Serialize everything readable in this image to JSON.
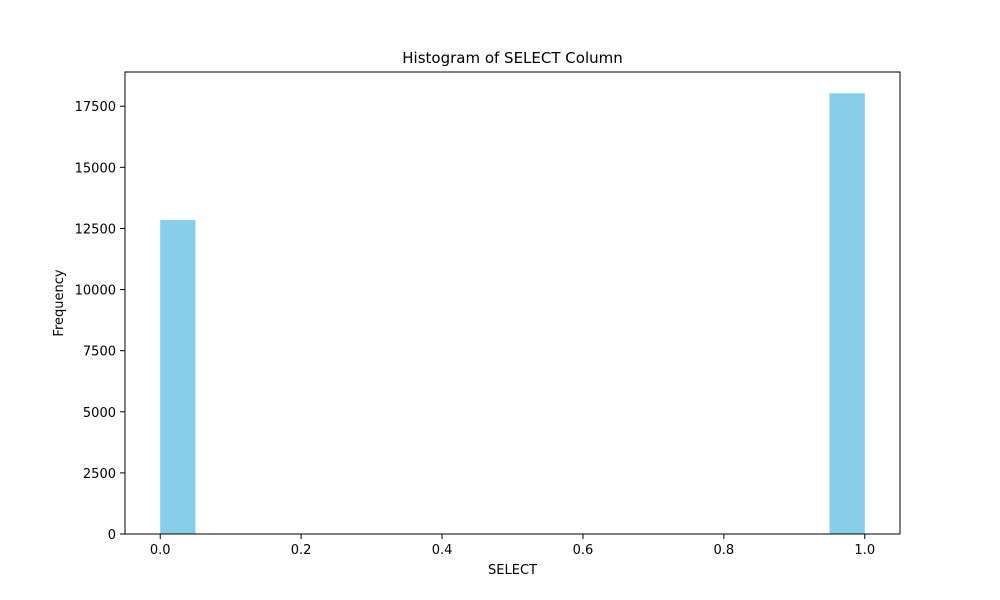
{
  "chart_data": {
    "type": "bar",
    "title": "Histogram of SELECT Column",
    "xlabel": "SELECT",
    "ylabel": "Frequency",
    "xlim": [
      -0.05,
      1.05
    ],
    "ylim": [
      0,
      18900
    ],
    "x_ticks": [
      "0.0",
      "0.2",
      "0.4",
      "0.6",
      "0.8",
      "1.0"
    ],
    "y_ticks": [
      "0",
      "2500",
      "5000",
      "7500",
      "10000",
      "12500",
      "15000",
      "17500"
    ],
    "bins": [
      {
        "x0": 0.0,
        "x1": 0.05,
        "value": 12850
      },
      {
        "x0": 0.95,
        "x1": 1.0,
        "value": 18030
      }
    ],
    "bar_color": "#87CEEB",
    "grid": false
  }
}
